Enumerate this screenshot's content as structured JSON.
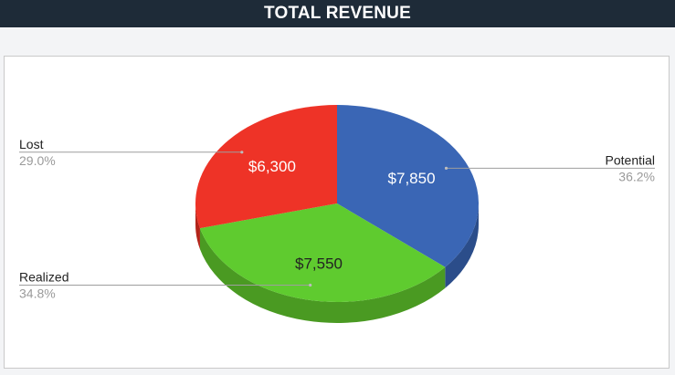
{
  "header": {
    "title": "TOTAL REVENUE"
  },
  "chart_data": {
    "type": "pie",
    "style": "3d",
    "title": "TOTAL REVENUE",
    "categories": [
      "Potential",
      "Realized",
      "Lost"
    ],
    "values": [
      7850,
      7550,
      6300
    ],
    "value_labels": [
      "$7,850",
      "$7,550",
      "$6,300"
    ],
    "percent_labels": [
      "36.2%",
      "34.8%",
      "29.0%"
    ],
    "colors": [
      "#3a66b5",
      "#5fcb2f",
      "#ee3327"
    ],
    "side_colors": [
      "#2b4d8a",
      "#4a9a22",
      "#b32419"
    ],
    "value_label_colors": [
      "#ffffff",
      "#222222",
      "#ffffff"
    ],
    "start_angle_deg": -90,
    "legend": "outside-labels"
  }
}
